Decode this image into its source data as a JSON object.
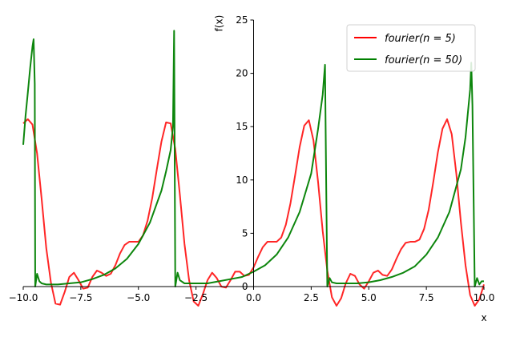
{
  "chart_data": {
    "type": "line",
    "xlabel": "x",
    "ylabel": "f(x)",
    "xlim": [
      -10.0,
      10.0
    ],
    "ylim": [
      0,
      25
    ],
    "xticks": [
      -10.0,
      -7.5,
      -5.0,
      -2.5,
      0.0,
      2.5,
      5.0,
      7.5,
      10.0
    ],
    "xtick_labels": [
      "−10.0",
      "−7.5",
      "−5.0",
      "−2.5",
      "0.0",
      "2.5",
      "5.0",
      "7.5",
      "10.0"
    ],
    "yticks": [
      0,
      5,
      10,
      15,
      20,
      25
    ],
    "ytick_labels": [
      "0",
      "5",
      "10",
      "15",
      "20",
      "25"
    ],
    "legend_position": "top-right",
    "grid": false,
    "series": [
      {
        "name": "fourier(n = 5)",
        "color": "#ff0000",
        "x": [
          -10.0,
          -9.8,
          -9.6,
          -9.4,
          -9.2,
          -9.0,
          -8.8,
          -8.6,
          -8.4,
          -8.2,
          -8.0,
          -7.8,
          -7.6,
          -7.4,
          -7.2,
          -7.0,
          -6.8,
          -6.6,
          -6.4,
          -6.2,
          -6.0,
          -5.8,
          -5.6,
          -5.4,
          -5.2,
          -5.0,
          -4.8,
          -4.6,
          -4.4,
          -4.2,
          -4.0,
          -3.8,
          -3.6,
          -3.4,
          -3.2,
          -3.0,
          -2.8,
          -2.6,
          -2.4,
          -2.2,
          -2.0,
          -1.8,
          -1.6,
          -1.4,
          -1.2,
          -1.0,
          -0.8,
          -0.6,
          -0.4,
          -0.2,
          0.0,
          0.2,
          0.4,
          0.6,
          0.8,
          1.0,
          1.2,
          1.4,
          1.6,
          1.8,
          2.0,
          2.2,
          2.4,
          2.6,
          2.8,
          3.0,
          3.2,
          3.4,
          3.6,
          3.8,
          4.0,
          4.2,
          4.4,
          4.6,
          4.8,
          5.0,
          5.2,
          5.4,
          5.6,
          5.8,
          6.0,
          6.2,
          6.4,
          6.6,
          6.8,
          7.0,
          7.2,
          7.4,
          7.6,
          7.8,
          8.0,
          8.2,
          8.4,
          8.6,
          8.8,
          9.0,
          9.2,
          9.4,
          9.6,
          9.8,
          10.0
        ],
        "y": [
          15.3,
          15.7,
          15.2,
          12.5,
          8.2,
          3.6,
          0.4,
          -1.6,
          -1.7,
          -0.5,
          0.9,
          1.3,
          0.6,
          -0.2,
          -0.1,
          0.9,
          1.5,
          1.3,
          1.0,
          1.2,
          2.0,
          3.1,
          3.9,
          4.2,
          4.2,
          4.2,
          4.8,
          6.2,
          8.3,
          11.0,
          13.6,
          15.4,
          15.3,
          12.9,
          8.6,
          4.0,
          0.6,
          -1.4,
          -1.8,
          -0.7,
          0.6,
          1.3,
          0.8,
          0.0,
          -0.1,
          0.6,
          1.4,
          1.4,
          1.0,
          1.1,
          1.8,
          2.8,
          3.7,
          4.2,
          4.2,
          4.2,
          4.6,
          5.8,
          7.8,
          10.4,
          13.1,
          15.1,
          15.6,
          13.7,
          9.8,
          5.2,
          1.5,
          -1.0,
          -1.8,
          -1.1,
          0.3,
          1.2,
          1.0,
          0.2,
          -0.2,
          0.5,
          1.3,
          1.5,
          1.1,
          1.0,
          1.6,
          2.6,
          3.5,
          4.1,
          4.2,
          4.2,
          4.4,
          5.4,
          7.2,
          9.8,
          12.6,
          14.8,
          15.7,
          14.3,
          10.6,
          6.0,
          2.0,
          -0.8,
          -1.8,
          -1.2,
          0.2
        ]
      },
      {
        "name": "fourier(n = 50)",
        "color": "#008000",
        "x": [
          -10.0,
          -9.9,
          -9.8,
          -9.7,
          -9.6,
          -9.55,
          -9.5,
          -9.48,
          -9.4,
          -9.3,
          -9.2,
          -9.0,
          -8.5,
          -8.0,
          -7.5,
          -7.0,
          -6.5,
          -6.0,
          -5.5,
          -5.0,
          -4.5,
          -4.0,
          -3.8,
          -3.6,
          -3.5,
          -3.45,
          -3.4,
          -3.3,
          -3.2,
          -3.0,
          -2.5,
          -2.0,
          -1.5,
          -1.0,
          -0.5,
          0.0,
          0.5,
          1.0,
          1.5,
          2.0,
          2.5,
          2.8,
          3.0,
          3.1,
          3.15,
          3.2,
          3.3,
          3.4,
          3.6,
          4.0,
          4.5,
          5.0,
          5.5,
          6.0,
          6.5,
          7.0,
          7.5,
          8.0,
          8.5,
          9.0,
          9.2,
          9.4,
          9.45,
          9.5,
          9.6,
          9.7,
          9.8,
          9.9,
          10.0
        ],
        "y": [
          13.3,
          16.0,
          18.2,
          20.5,
          22.5,
          23.2,
          19.0,
          0.0,
          1.2,
          0.5,
          0.3,
          0.2,
          0.2,
          0.3,
          0.4,
          0.7,
          1.1,
          1.7,
          2.6,
          4.0,
          6.0,
          9.0,
          10.8,
          12.8,
          15.0,
          24.0,
          0.0,
          1.3,
          0.6,
          0.3,
          0.3,
          0.3,
          0.5,
          0.7,
          0.9,
          1.4,
          2.0,
          3.0,
          4.6,
          7.0,
          10.6,
          14.8,
          18.0,
          20.8,
          10.0,
          0.0,
          0.8,
          0.4,
          0.3,
          0.3,
          0.3,
          0.4,
          0.6,
          0.9,
          1.3,
          1.9,
          3.0,
          4.6,
          7.0,
          11.0,
          14.0,
          18.5,
          21.0,
          17.0,
          0.0,
          0.8,
          0.2,
          0.5,
          0.5
        ]
      }
    ]
  }
}
